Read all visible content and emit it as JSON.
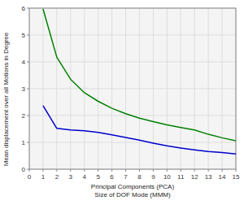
{
  "chart_data": {
    "type": "line",
    "xlabel": "Principal Components (PCA)\nSize of DOF Mode (MMM)",
    "ylabel": "Mean displacement over all Motions in Degree",
    "x": [
      1,
      2,
      3,
      4,
      5,
      6,
      7,
      8,
      9,
      10,
      11,
      12,
      13,
      14,
      15
    ],
    "series": [
      {
        "color": "#008000",
        "values": [
          5.97,
          4.17,
          3.35,
          2.85,
          2.53,
          2.27,
          2.07,
          1.9,
          1.77,
          1.65,
          1.55,
          1.46,
          1.3,
          1.17,
          1.06
        ]
      },
      {
        "color": "#0000cd",
        "values": [
          2.37,
          1.52,
          1.46,
          1.43,
          1.37,
          1.28,
          1.18,
          1.08,
          0.97,
          0.87,
          0.79,
          0.72,
          0.66,
          0.62,
          0.57
        ]
      }
    ],
    "xlim": [
      0,
      15
    ],
    "ylim": [
      0,
      6
    ],
    "xticks": [
      0,
      1,
      2,
      3,
      4,
      5,
      6,
      7,
      8,
      9,
      10,
      11,
      12,
      13,
      14,
      15
    ],
    "yticks": [
      0,
      1,
      2,
      3,
      4,
      5,
      6
    ],
    "grid": true
  }
}
